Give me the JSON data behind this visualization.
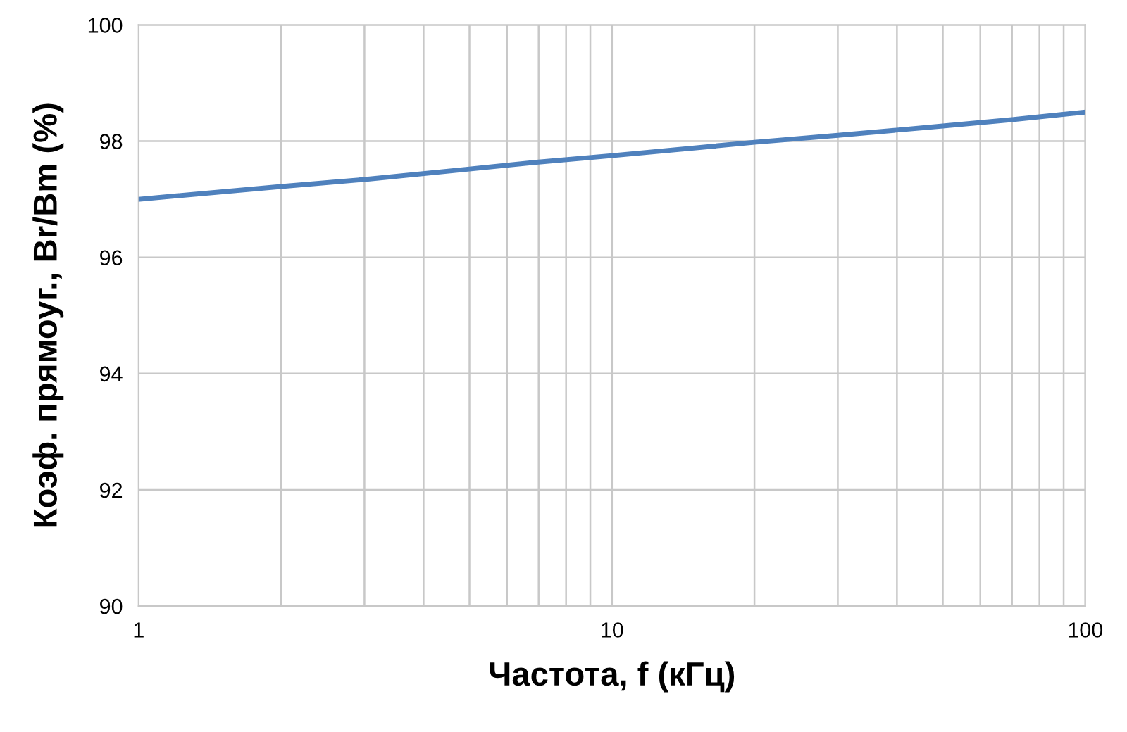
{
  "chart_data": {
    "type": "line",
    "xlabel": "Частота, f (кГц)",
    "ylabel": "Коэф. прямоуг., Br/Bm (%)",
    "log": "x",
    "grid": true,
    "legend": false,
    "marker": "none",
    "line_style": "solid",
    "xlim": [
      1,
      100
    ],
    "xticks": [
      1,
      10,
      100
    ],
    "ylim": [
      90,
      100
    ],
    "yticks": [
      90,
      92,
      94,
      96,
      98,
      100
    ],
    "x": [
      1,
      2,
      3,
      5,
      7,
      10,
      20,
      30,
      50,
      70,
      100
    ],
    "series": [
      {
        "color": "#4f81bd",
        "values": [
          97.0,
          97.22,
          97.34,
          97.52,
          97.64,
          97.75,
          97.98,
          98.1,
          98.26,
          98.37,
          98.5
        ]
      }
    ]
  }
}
